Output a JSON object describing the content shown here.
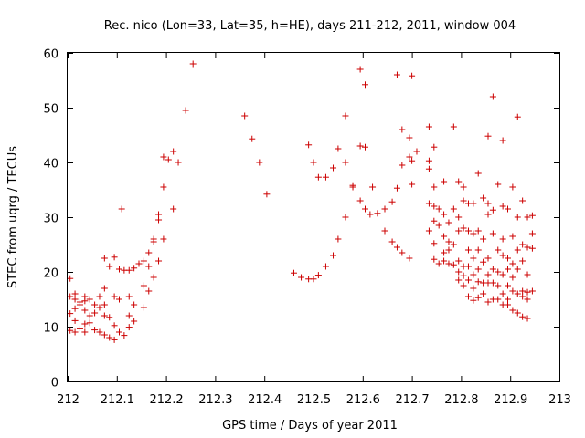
{
  "chart_data": {
    "type": "scatter",
    "title": "Rec. nico (Lon=33, Lat=35, h=HE), days 211-212, 2011, window 004",
    "xlabel": "GPS time / Days of year 2011",
    "ylabel": "STEC from uqrg / TECUs",
    "xlim": [
      212,
      213
    ],
    "ylim": [
      0,
      60
    ],
    "xticks": [
      "212",
      "212.1",
      "212.2",
      "212.3",
      "212.4",
      "212.5",
      "212.6",
      "212.7",
      "212.8",
      "212.9",
      "213"
    ],
    "yticks": [
      "0",
      "10",
      "20",
      "30",
      "40",
      "50",
      "60"
    ],
    "grid": false,
    "legend": "none",
    "marker": "plus",
    "color": "#cc0000",
    "series": [
      {
        "points": [
          [
            212.005,
            18.8
          ],
          [
            212.005,
            15.5
          ],
          [
            212.005,
            12.4
          ],
          [
            212.005,
            9.3
          ],
          [
            212.015,
            16.0
          ],
          [
            212.015,
            15.0
          ],
          [
            212.015,
            13.3
          ],
          [
            212.015,
            11.1
          ],
          [
            212.015,
            9.0
          ],
          [
            212.025,
            14.5
          ],
          [
            212.025,
            14.0
          ],
          [
            212.025,
            9.6
          ],
          [
            212.035,
            15.5
          ],
          [
            212.035,
            14.7
          ],
          [
            212.035,
            13.0
          ],
          [
            212.035,
            10.5
          ],
          [
            212.035,
            9.0
          ],
          [
            212.045,
            15.0
          ],
          [
            212.045,
            12.0
          ],
          [
            212.045,
            10.7
          ],
          [
            212.055,
            14.0
          ],
          [
            212.055,
            12.5
          ],
          [
            212.055,
            9.4
          ],
          [
            212.065,
            15.5
          ],
          [
            212.065,
            13.5
          ],
          [
            212.065,
            9.0
          ],
          [
            212.075,
            22.5
          ],
          [
            212.075,
            17.0
          ],
          [
            212.075,
            14.0
          ],
          [
            212.075,
            12.0
          ],
          [
            212.075,
            8.5
          ],
          [
            212.085,
            21.0
          ],
          [
            212.085,
            11.7
          ],
          [
            212.085,
            8.0
          ],
          [
            212.095,
            22.7
          ],
          [
            212.095,
            15.5
          ],
          [
            212.095,
            10.2
          ],
          [
            212.095,
            7.6
          ],
          [
            212.105,
            20.5
          ],
          [
            212.105,
            15.0
          ],
          [
            212.105,
            9.0
          ],
          [
            212.11,
            31.5
          ],
          [
            212.115,
            20.3
          ],
          [
            212.115,
            8.4
          ],
          [
            212.125,
            20.3
          ],
          [
            212.125,
            15.5
          ],
          [
            212.125,
            12.0
          ],
          [
            212.125,
            9.9
          ],
          [
            212.135,
            20.7
          ],
          [
            212.135,
            14.0
          ],
          [
            212.135,
            11.0
          ],
          [
            212.145,
            21.5
          ],
          [
            212.155,
            22.0
          ],
          [
            212.155,
            17.5
          ],
          [
            212.155,
            13.5
          ],
          [
            212.165,
            23.5
          ],
          [
            212.165,
            21.0
          ],
          [
            212.165,
            16.5
          ],
          [
            212.175,
            26.0
          ],
          [
            212.175,
            25.5
          ],
          [
            212.175,
            19.0
          ],
          [
            212.185,
            30.5
          ],
          [
            212.185,
            29.5
          ],
          [
            212.185,
            22.0
          ],
          [
            212.195,
            41.0
          ],
          [
            212.195,
            35.5
          ],
          [
            212.195,
            26.0
          ],
          [
            212.205,
            40.5
          ],
          [
            212.215,
            42.0
          ],
          [
            212.215,
            31.5
          ],
          [
            212.225,
            40.0
          ],
          [
            212.24,
            49.5
          ],
          [
            212.255,
            58.0
          ],
          [
            212.36,
            48.5
          ],
          [
            212.375,
            44.3
          ],
          [
            212.39,
            40.0
          ],
          [
            212.405,
            34.2
          ],
          [
            212.46,
            19.8
          ],
          [
            212.475,
            19.0
          ],
          [
            212.49,
            18.7
          ],
          [
            212.5,
            18.7
          ],
          [
            212.49,
            43.2
          ],
          [
            212.5,
            40.0
          ],
          [
            212.51,
            19.4
          ],
          [
            212.51,
            37.3
          ],
          [
            212.525,
            21.0
          ],
          [
            212.525,
            37.3
          ],
          [
            212.54,
            23.0
          ],
          [
            212.54,
            39.0
          ],
          [
            212.55,
            26.0
          ],
          [
            212.55,
            42.5
          ],
          [
            212.565,
            30.0
          ],
          [
            212.565,
            48.5
          ],
          [
            212.565,
            40.0
          ],
          [
            212.58,
            35.8
          ],
          [
            212.58,
            35.5
          ],
          [
            212.595,
            57.0
          ],
          [
            212.595,
            43.0
          ],
          [
            212.595,
            33.0
          ],
          [
            212.605,
            54.2
          ],
          [
            212.605,
            42.8
          ],
          [
            212.605,
            31.5
          ],
          [
            212.615,
            30.5
          ],
          [
            212.62,
            35.5
          ],
          [
            212.63,
            30.7
          ],
          [
            212.645,
            31.5
          ],
          [
            212.645,
            27.5
          ],
          [
            212.66,
            32.8
          ],
          [
            212.66,
            25.5
          ],
          [
            212.67,
            56.0
          ],
          [
            212.67,
            35.3
          ],
          [
            212.67,
            24.5
          ],
          [
            212.68,
            46.0
          ],
          [
            212.68,
            39.5
          ],
          [
            212.68,
            23.5
          ],
          [
            212.695,
            44.5
          ],
          [
            212.695,
            41.0
          ],
          [
            212.695,
            22.5
          ],
          [
            212.7,
            55.8
          ],
          [
            212.7,
            40.3
          ],
          [
            212.7,
            36.0
          ],
          [
            212.71,
            42.0
          ],
          [
            212.735,
            46.5
          ],
          [
            212.735,
            40.3
          ],
          [
            212.735,
            38.8
          ],
          [
            212.735,
            32.5
          ],
          [
            212.735,
            27.5
          ],
          [
            212.745,
            42.8
          ],
          [
            212.745,
            35.5
          ],
          [
            212.745,
            32.0
          ],
          [
            212.745,
            29.3
          ],
          [
            212.745,
            25.2
          ],
          [
            212.745,
            22.3
          ],
          [
            212.755,
            31.5
          ],
          [
            212.755,
            28.5
          ],
          [
            212.755,
            21.5
          ],
          [
            212.765,
            36.5
          ],
          [
            212.765,
            30.5
          ],
          [
            212.765,
            26.5
          ],
          [
            212.765,
            23.5
          ],
          [
            212.765,
            22.0
          ],
          [
            212.775,
            29.0
          ],
          [
            212.775,
            25.5
          ],
          [
            212.775,
            24.0
          ],
          [
            212.775,
            21.5
          ],
          [
            212.785,
            46.5
          ],
          [
            212.785,
            31.5
          ],
          [
            212.785,
            25.0
          ],
          [
            212.785,
            21.3
          ],
          [
            212.795,
            36.5
          ],
          [
            212.795,
            30.0
          ],
          [
            212.795,
            27.5
          ],
          [
            212.795,
            22.0
          ],
          [
            212.795,
            20.0
          ],
          [
            212.795,
            18.5
          ],
          [
            212.805,
            35.5
          ],
          [
            212.805,
            33.0
          ],
          [
            212.805,
            28.0
          ],
          [
            212.805,
            21.0
          ],
          [
            212.805,
            19.3
          ],
          [
            212.805,
            17.5
          ],
          [
            212.815,
            32.5
          ],
          [
            212.815,
            27.5
          ],
          [
            212.815,
            24.0
          ],
          [
            212.815,
            21.0
          ],
          [
            212.815,
            18.5
          ],
          [
            212.815,
            15.5
          ],
          [
            212.825,
            32.5
          ],
          [
            212.825,
            27.0
          ],
          [
            212.825,
            22.5
          ],
          [
            212.825,
            19.5
          ],
          [
            212.825,
            17.0
          ],
          [
            212.825,
            14.8
          ],
          [
            212.835,
            38.0
          ],
          [
            212.835,
            27.5
          ],
          [
            212.835,
            24.0
          ],
          [
            212.835,
            20.5
          ],
          [
            212.835,
            18.2
          ],
          [
            212.835,
            15.3
          ],
          [
            212.845,
            33.5
          ],
          [
            212.845,
            26.0
          ],
          [
            212.845,
            21.8
          ],
          [
            212.845,
            18.0
          ],
          [
            212.845,
            16.0
          ],
          [
            212.855,
            44.8
          ],
          [
            212.855,
            32.5
          ],
          [
            212.855,
            30.5
          ],
          [
            212.855,
            22.5
          ],
          [
            212.855,
            19.5
          ],
          [
            212.855,
            18.0
          ],
          [
            212.855,
            14.5
          ],
          [
            212.865,
            52.0
          ],
          [
            212.865,
            31.3
          ],
          [
            212.865,
            27.0
          ],
          [
            212.865,
            20.5
          ],
          [
            212.865,
            18.0
          ],
          [
            212.865,
            15.0
          ],
          [
            212.875,
            36.0
          ],
          [
            212.875,
            24.0
          ],
          [
            212.875,
            20.0
          ],
          [
            212.875,
            17.5
          ],
          [
            212.875,
            15.0
          ],
          [
            212.885,
            44.0
          ],
          [
            212.885,
            32.0
          ],
          [
            212.885,
            26.0
          ],
          [
            212.885,
            23.0
          ],
          [
            212.885,
            19.5
          ],
          [
            212.885,
            16.0
          ],
          [
            212.885,
            14.0
          ],
          [
            212.895,
            31.5
          ],
          [
            212.895,
            22.5
          ],
          [
            212.895,
            20.5
          ],
          [
            212.895,
            17.5
          ],
          [
            212.895,
            15.0
          ],
          [
            212.895,
            14.0
          ],
          [
            212.905,
            35.5
          ],
          [
            212.905,
            26.5
          ],
          [
            212.905,
            21.5
          ],
          [
            212.905,
            19.0
          ],
          [
            212.905,
            16.5
          ],
          [
            212.905,
            13.0
          ],
          [
            212.915,
            48.3
          ],
          [
            212.915,
            30.0
          ],
          [
            212.915,
            24.0
          ],
          [
            212.915,
            20.5
          ],
          [
            212.915,
            16.0
          ],
          [
            212.915,
            12.5
          ],
          [
            212.925,
            33.0
          ],
          [
            212.925,
            25.0
          ],
          [
            212.925,
            22.0
          ],
          [
            212.925,
            16.5
          ],
          [
            212.925,
            15.5
          ],
          [
            212.925,
            11.8
          ],
          [
            212.935,
            30.0
          ],
          [
            212.935,
            24.5
          ],
          [
            212.935,
            19.5
          ],
          [
            212.935,
            16.3
          ],
          [
            212.935,
            15.0
          ],
          [
            212.935,
            11.5
          ],
          [
            212.945,
            30.3
          ],
          [
            212.945,
            27.0
          ],
          [
            212.945,
            24.3
          ],
          [
            212.945,
            16.5
          ]
        ]
      }
    ]
  }
}
